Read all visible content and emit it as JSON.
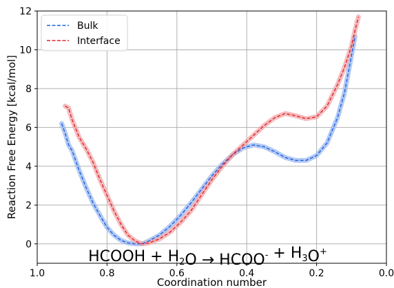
{
  "chart_data": {
    "type": "line",
    "title": "",
    "xlabel": "Coordination number",
    "ylabel": "Reaction Free Energy [kcal/mol]",
    "xlim": [
      1.0,
      0.0
    ],
    "ylim": [
      -1.0,
      12.0
    ],
    "x_reversed": true,
    "grid": true,
    "legend_position": "top-left",
    "xticks": [
      {
        "value": 1.0,
        "label": "1.0"
      },
      {
        "value": 0.8,
        "label": "0.8"
      },
      {
        "value": 0.6,
        "label": "0.6"
      },
      {
        "value": 0.4,
        "label": "0.4"
      },
      {
        "value": 0.2,
        "label": "0.2"
      },
      {
        "value": 0.0,
        "label": "0.0"
      }
    ],
    "yticks": [
      {
        "value": 0,
        "label": "0"
      },
      {
        "value": 2,
        "label": "2"
      },
      {
        "value": 4,
        "label": "4"
      },
      {
        "value": 6,
        "label": "6"
      },
      {
        "value": 8,
        "label": "8"
      },
      {
        "value": 10,
        "label": "10"
      },
      {
        "value": 12,
        "label": "12"
      }
    ],
    "annotation": {
      "segments": [
        {
          "t": "HCOOH + H",
          "s": "n"
        },
        {
          "t": "2",
          "s": "sub"
        },
        {
          "t": "O  →  HCOO",
          "s": "n"
        },
        {
          "t": "-",
          "s": "sup"
        },
        {
          "t": " + H",
          "s": "n"
        },
        {
          "t": "3",
          "s": "sub"
        },
        {
          "t": "O",
          "s": "n"
        },
        {
          "t": "+",
          "s": "sup"
        }
      ]
    },
    "series": [
      {
        "name": "Bulk",
        "color": "#1f5fe0",
        "band_color": "#9bb8f0",
        "x": [
          0.93,
          0.92,
          0.91,
          0.9,
          0.88,
          0.86,
          0.84,
          0.82,
          0.8,
          0.78,
          0.76,
          0.74,
          0.72,
          0.7,
          0.68,
          0.65,
          0.62,
          0.59,
          0.56,
          0.53,
          0.5,
          0.47,
          0.44,
          0.41,
          0.38,
          0.35,
          0.32,
          0.29,
          0.26,
          0.23,
          0.2,
          0.17,
          0.14,
          0.12,
          0.1,
          0.09
        ],
        "y": [
          6.2,
          5.7,
          5.1,
          4.8,
          3.8,
          2.9,
          2.1,
          1.45,
          0.85,
          0.45,
          0.18,
          0.05,
          0.0,
          0.0,
          0.15,
          0.45,
          0.9,
          1.45,
          2.1,
          2.8,
          3.5,
          4.1,
          4.6,
          4.95,
          5.1,
          5.0,
          4.75,
          4.45,
          4.3,
          4.3,
          4.55,
          5.2,
          6.5,
          7.8,
          9.7,
          10.7
        ]
      },
      {
        "name": "Interface",
        "color": "#e0242a",
        "band_color": "#f2a7aa",
        "x": [
          0.92,
          0.91,
          0.9,
          0.88,
          0.86,
          0.84,
          0.82,
          0.8,
          0.78,
          0.76,
          0.74,
          0.72,
          0.7,
          0.68,
          0.65,
          0.62,
          0.59,
          0.56,
          0.53,
          0.5,
          0.47,
          0.44,
          0.41,
          0.38,
          0.35,
          0.32,
          0.29,
          0.26,
          0.23,
          0.2,
          0.17,
          0.14,
          0.12,
          0.1,
          0.09,
          0.08
        ],
        "y": [
          7.1,
          7.0,
          6.4,
          5.5,
          4.9,
          4.2,
          3.3,
          2.5,
          1.7,
          1.0,
          0.45,
          0.15,
          0.0,
          0.05,
          0.25,
          0.6,
          1.1,
          1.7,
          2.5,
          3.3,
          4.0,
          4.6,
          5.1,
          5.6,
          6.1,
          6.5,
          6.72,
          6.6,
          6.45,
          6.55,
          7.1,
          8.2,
          9.1,
          10.2,
          11.0,
          11.7
        ]
      }
    ]
  }
}
